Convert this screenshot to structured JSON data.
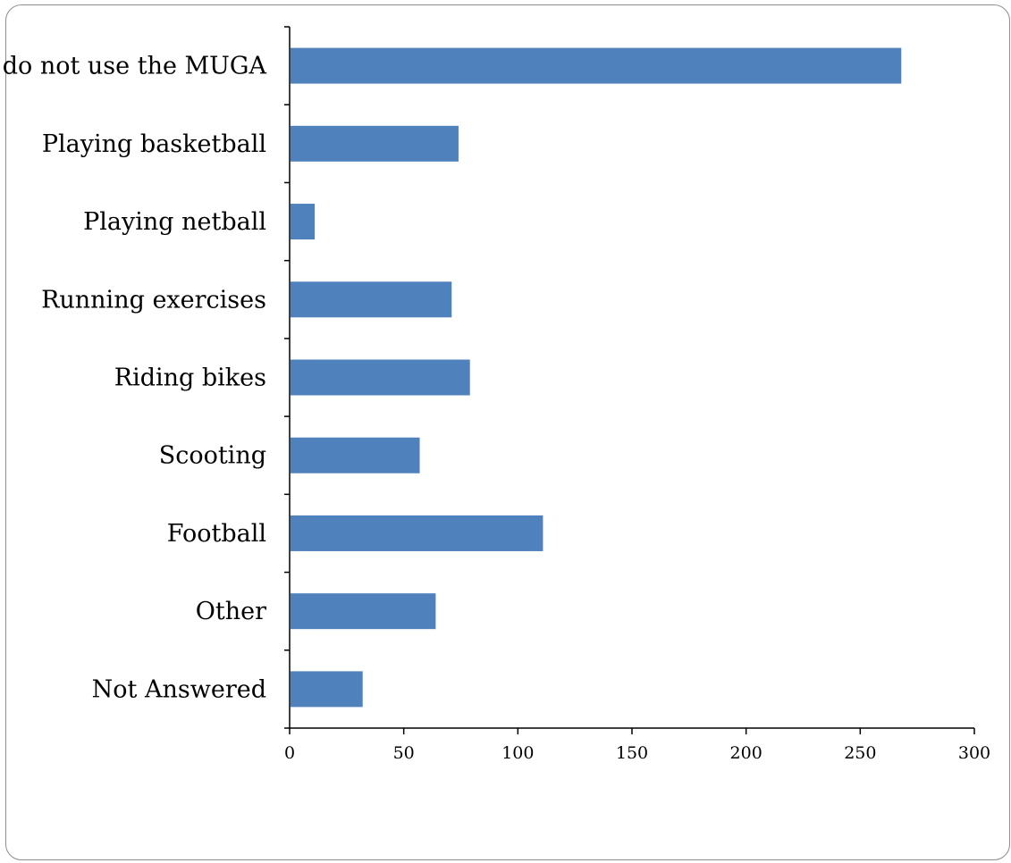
{
  "chart_data": {
    "type": "bar",
    "orientation": "horizontal",
    "categories": [
      "I do not use the MUGA",
      "Playing basketball",
      "Playing netball",
      "Running exercises",
      "Riding bikes",
      "Scooting",
      "Football",
      "Other",
      "Not Answered"
    ],
    "values": [
      268,
      74,
      11,
      71,
      79,
      57,
      111,
      64,
      32
    ],
    "xlim": [
      0,
      300
    ],
    "xticks": [
      0,
      50,
      100,
      150,
      200,
      250,
      300
    ],
    "bar_color": "#4f81bd",
    "grid": false,
    "legend": "none"
  }
}
